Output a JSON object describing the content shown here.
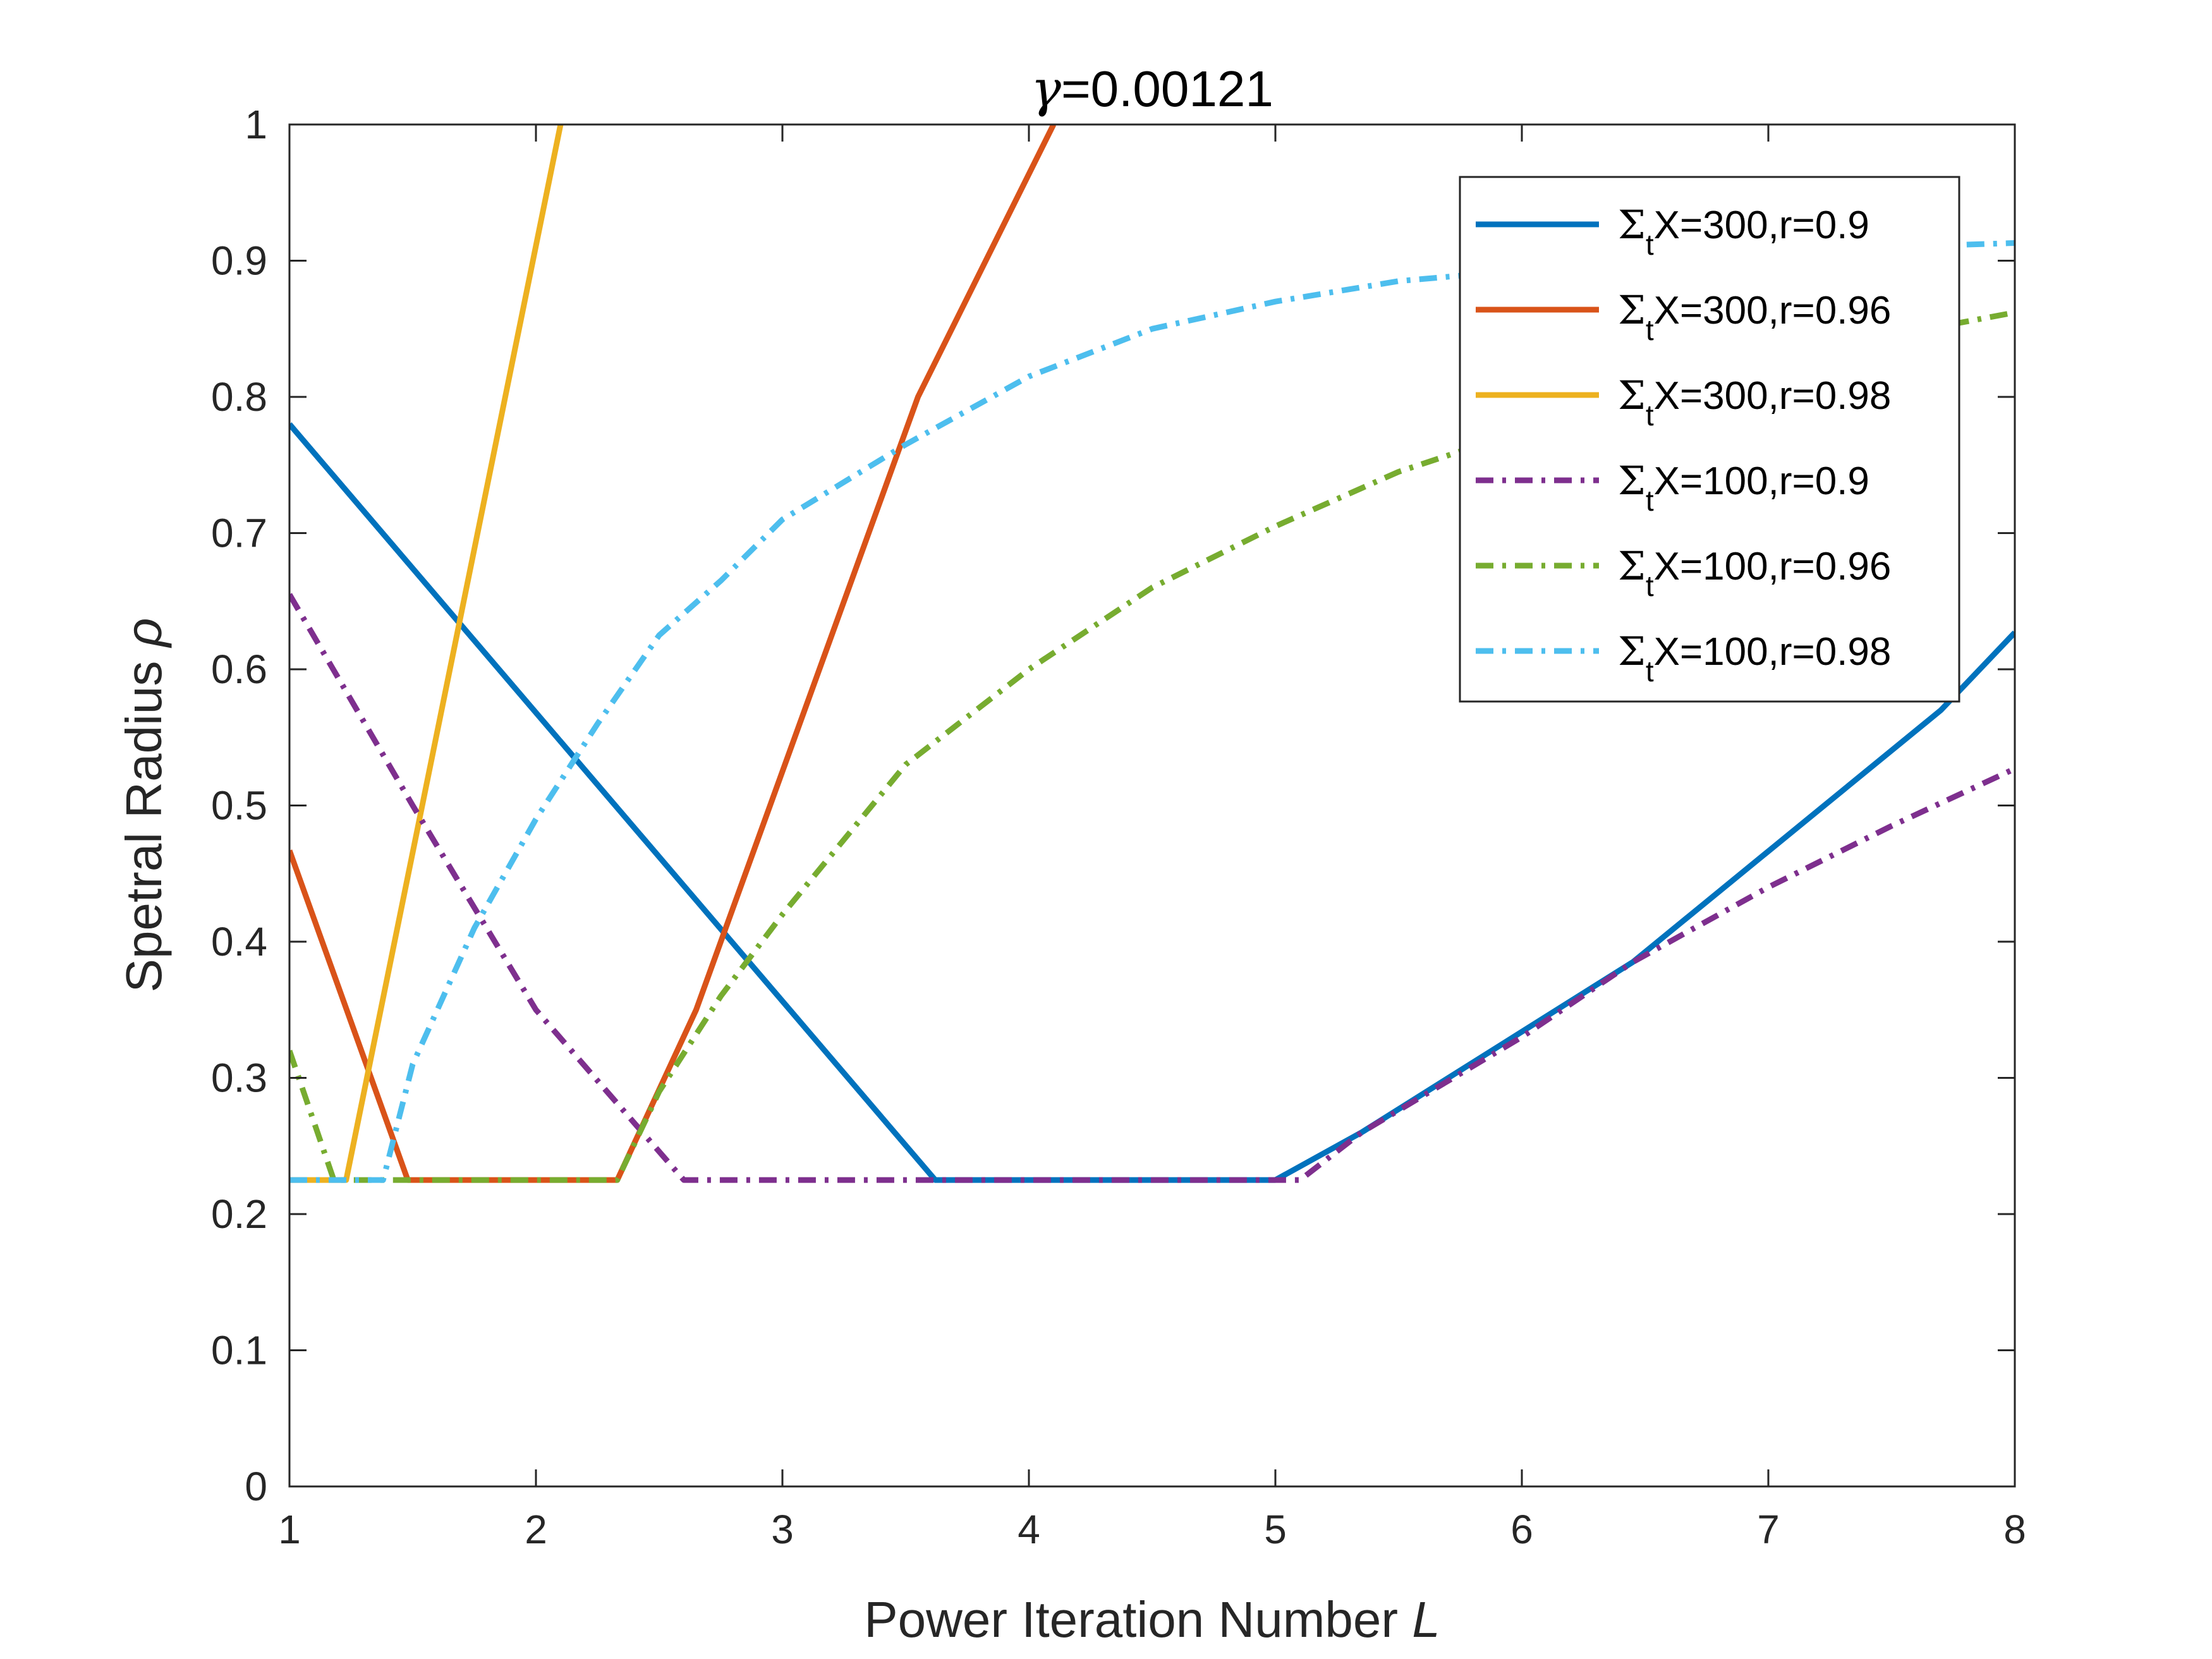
{
  "chart_data": {
    "type": "line",
    "title": "γ=0.00121",
    "xlabel": "Power Iteration Number L",
    "ylabel": "Spetral Radius ρ",
    "xlim": [
      1,
      8
    ],
    "ylim": [
      0,
      1
    ],
    "xticks": [
      "1",
      "2",
      "3",
      "4",
      "5",
      "6",
      "7",
      "8"
    ],
    "yticks": [
      "0",
      "0.1",
      "0.2",
      "0.3",
      "0.4",
      "0.5",
      "0.6",
      "0.7",
      "0.8",
      "0.9",
      "1"
    ],
    "grid": false,
    "legend_position": "top-right",
    "series": [
      {
        "name": "ΣtX=300,r=0.9",
        "color": "#0072BD",
        "style": "solid",
        "x": [
          1,
          3.62,
          5.0,
          5.35,
          6.45,
          7.7,
          8.0
        ],
        "y": [
          0.78,
          0.225,
          0.225,
          0.26,
          0.385,
          0.57,
          0.627
        ]
      },
      {
        "name": "ΣtX=300,r=0.96",
        "color": "#D95319",
        "style": "solid",
        "x": [
          1,
          1.48,
          2.33,
          2.65,
          3.55,
          4.1
        ],
        "y": [
          0.467,
          0.225,
          0.225,
          0.35,
          0.8,
          1.0
        ]
      },
      {
        "name": "ΣtX=300,r=0.98",
        "color": "#EDB120",
        "style": "solid",
        "x": [
          1,
          1.23,
          2.1
        ],
        "y": [
          0.225,
          0.225,
          1.0
        ]
      },
      {
        "name": "ΣtX=100,r=0.9",
        "color": "#7E2F8E",
        "style": "dashdot",
        "x": [
          1,
          1.5,
          2.0,
          2.6,
          5.1,
          5.35,
          6.0,
          6.45,
          7.0,
          7.5,
          8.0
        ],
        "y": [
          0.655,
          0.5,
          0.35,
          0.225,
          0.225,
          0.26,
          0.33,
          0.385,
          0.44,
          0.485,
          0.527
        ]
      },
      {
        "name": "ΣtX=100,r=0.96",
        "color": "#77AC30",
        "style": "dashdot",
        "x": [
          1,
          1.18,
          2.33,
          2.5,
          2.75,
          3.0,
          3.5,
          4.0,
          4.5,
          5.0,
          5.5,
          6.0,
          6.5,
          7.0,
          7.5,
          8.0
        ],
        "y": [
          0.32,
          0.225,
          0.225,
          0.29,
          0.36,
          0.42,
          0.53,
          0.6,
          0.66,
          0.705,
          0.745,
          0.775,
          0.8,
          0.825,
          0.845,
          0.862
        ]
      },
      {
        "name": "ΣtX=100,r=0.98",
        "color": "#4DBEEE",
        "style": "dashdot",
        "x": [
          1,
          1.38,
          1.5,
          1.75,
          2.0,
          2.25,
          2.5,
          2.75,
          3.0,
          3.5,
          4.0,
          4.5,
          5.0,
          5.5,
          6.0,
          6.5,
          7.0,
          7.5,
          8.0
        ],
        "y": [
          0.225,
          0.225,
          0.31,
          0.41,
          0.49,
          0.56,
          0.625,
          0.665,
          0.71,
          0.765,
          0.815,
          0.85,
          0.87,
          0.885,
          0.893,
          0.9,
          0.905,
          0.91,
          0.913
        ]
      }
    ]
  }
}
